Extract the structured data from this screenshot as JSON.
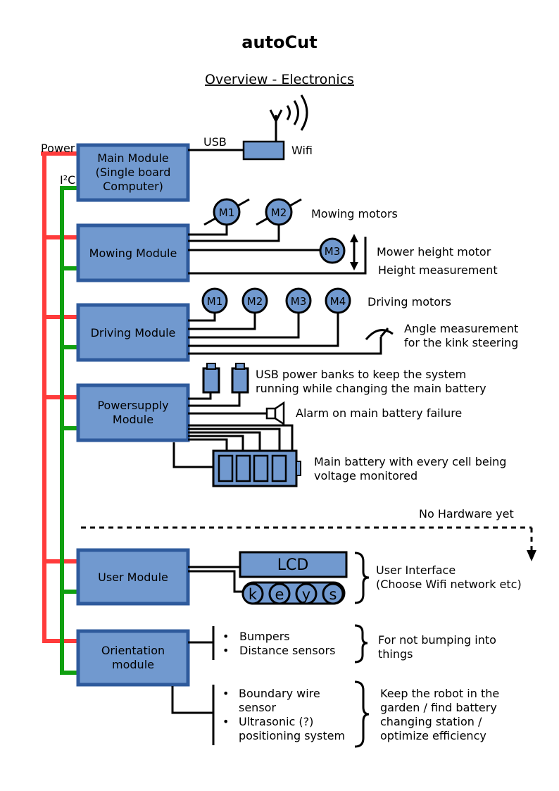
{
  "page": {
    "title": "autoCut",
    "subtitle": "Overview - Electronics"
  },
  "bus": {
    "power_label": "Power",
    "i2c_label": "I²C",
    "power_color": "#ff3b3b",
    "i2c_color": "#10a010"
  },
  "colors": {
    "module_fill": "#7199cf",
    "module_stroke": "#2e5a9c"
  },
  "main_module": {
    "lines": [
      "Main Module",
      "(Single board",
      "Computer)"
    ],
    "usb_label": "USB",
    "wifi_label": "Wifi"
  },
  "mowing_module": {
    "label": "Mowing Module",
    "motors": [
      "M1",
      "M2"
    ],
    "height_motor": "M3",
    "motors_label": "Mowing motors",
    "height_motor_label": "Mower height  motor",
    "height_measurement_label": "Height measurement"
  },
  "driving_module": {
    "label": "Driving Module",
    "motors": [
      "M1",
      "M2",
      "M3",
      "M4"
    ],
    "motors_label": "Driving motors",
    "angle_label": [
      "Angle measurement",
      "for the kink steering"
    ]
  },
  "powersupply_module": {
    "lines": [
      "Powersupply",
      "Module"
    ],
    "powerbank_label": [
      "USB power banks to keep the system",
      "running while changing the main battery"
    ],
    "alarm_label": "Alarm on main battery failure",
    "battery_label": [
      "Main battery with every cell being",
      "voltage monitored"
    ]
  },
  "separator_label": "No Hardware yet",
  "user_module": {
    "label": "User Module",
    "lcd": "LCD",
    "keys": [
      "k",
      "e",
      "y",
      "s"
    ],
    "desc": [
      "User Interface",
      "(Choose Wifi network etc)"
    ]
  },
  "orientation_module": {
    "lines": [
      "Orientation",
      "module"
    ],
    "group1_items": [
      "Bumpers",
      "Distance sensors"
    ],
    "group1_desc": [
      "For not bumping into",
      "things"
    ],
    "group2_items": [
      [
        "Boundary wire",
        "sensor"
      ],
      [
        "Ultrasonic (?)",
        "positioning system"
      ]
    ],
    "group2_desc": [
      "Keep the robot in the",
      "garden / find battery",
      "changing station /",
      "optimize efficiency"
    ]
  }
}
